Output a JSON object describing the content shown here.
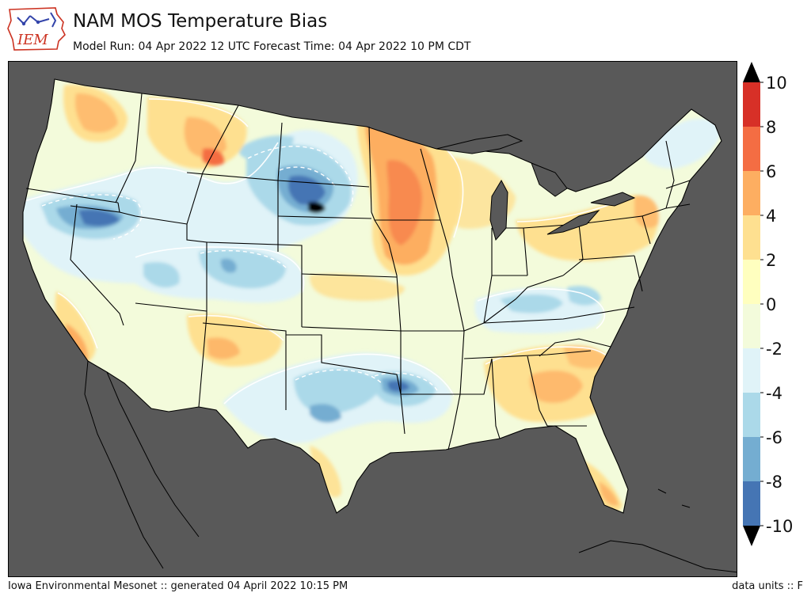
{
  "header": {
    "logo_text": "IEM",
    "title": "NAM MOS Temperature Bias",
    "subtitle": "Model Run: 04 Apr 2022 12 UTC Forecast Time: 04 Apr 2022 10 PM CDT"
  },
  "map": {
    "region": "Contiguous United States",
    "background_color": "#595959",
    "icons": [
      "iowa-logo-icon"
    ]
  },
  "colorbar": {
    "ticks": [
      "10",
      "8",
      "6",
      "4",
      "2",
      "0",
      "-2",
      "-4",
      "-6",
      "-8",
      "-10"
    ],
    "extend": "both",
    "colors": [
      "#d73027",
      "#f46d43",
      "#fdae61",
      "#fee090",
      "#ffffbf",
      "#f3fbdb",
      "#e0f3f8",
      "#abd9e9",
      "#74add1",
      "#4575b4"
    ],
    "over_color": "#000000",
    "under_color": "#000000"
  },
  "footer": {
    "left": "Iowa Environmental Mesonet :: generated 04 April 2022 10:15 PM",
    "right": "data units :: F"
  }
}
